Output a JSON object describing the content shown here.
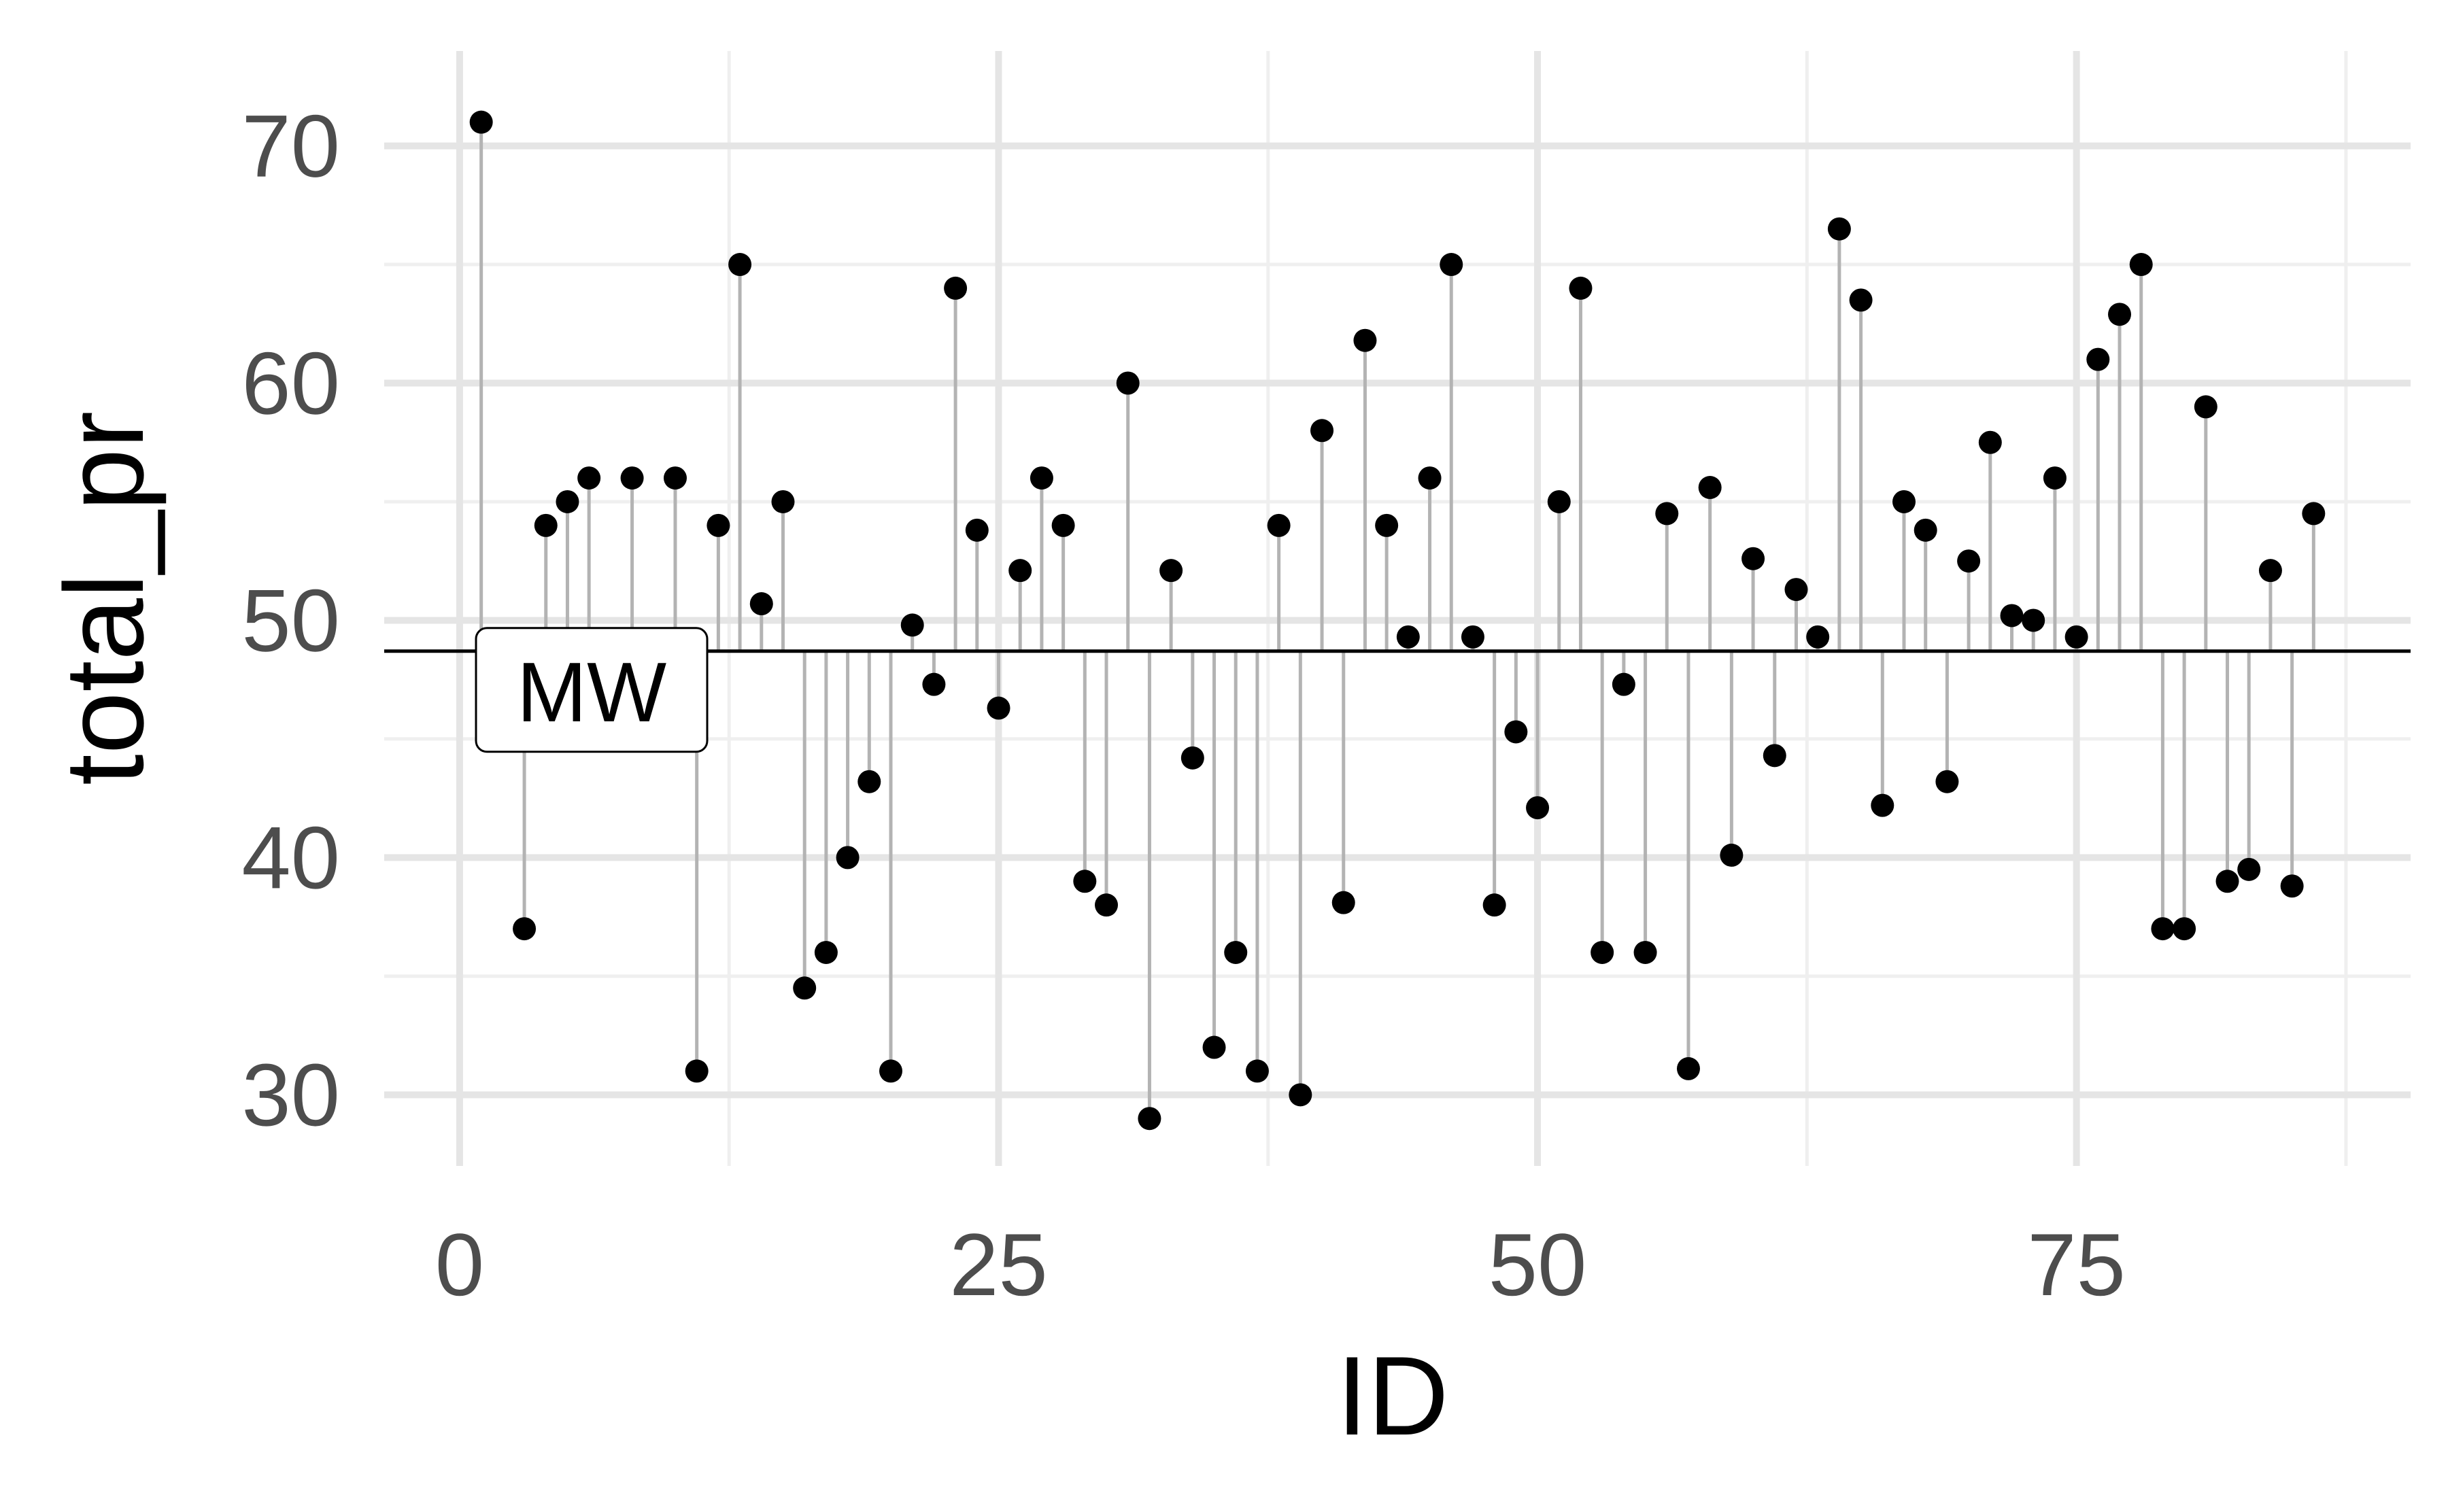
{
  "chart_data": {
    "type": "scatter",
    "xlabel": "ID",
    "ylabel": "total_pr",
    "xlim": [
      -3.5,
      90.5
    ],
    "ylim": [
      27,
      74
    ],
    "x_ticks": [
      0,
      25,
      50,
      75
    ],
    "y_ticks": [
      30,
      40,
      50,
      60,
      70
    ],
    "x_minor_ticks": [
      12.5,
      37.5,
      62.5,
      87.5
    ],
    "y_minor_ticks": [
      35,
      45,
      55,
      65
    ],
    "grid": true,
    "reference_line": {
      "y": 48.7,
      "label": "MW"
    },
    "series": [
      {
        "x": [
          1,
          3,
          4,
          5,
          6,
          8,
          10,
          11,
          12,
          13,
          14,
          15,
          16,
          17,
          18,
          19,
          20,
          21,
          22,
          23,
          24,
          25,
          26,
          27,
          28,
          29,
          30,
          31,
          32,
          33,
          34,
          35,
          36,
          37,
          38,
          39,
          40,
          41,
          42,
          43,
          44,
          45,
          46,
          47,
          48,
          49,
          50,
          51,
          52,
          53,
          54,
          55,
          56,
          57,
          58,
          59,
          60,
          61,
          62,
          63,
          64,
          65,
          66,
          67,
          68,
          69,
          70,
          71,
          72,
          73,
          74,
          75,
          76,
          77,
          78,
          79,
          80,
          81,
          82,
          83,
          84,
          85,
          86
        ],
        "y": [
          71,
          37,
          54,
          55,
          56,
          56,
          56,
          31,
          54,
          65,
          50.7,
          55,
          34.5,
          36,
          40,
          43.2,
          31,
          49.8,
          47.3,
          64,
          53.8,
          46.3,
          52.1,
          56,
          54,
          39,
          38,
          60,
          29,
          52.1,
          44.2,
          32,
          36,
          31,
          54,
          30,
          58,
          38.1,
          61.8,
          54,
          49.3,
          56,
          65,
          49.3,
          38,
          45.3,
          42.1,
          55,
          64,
          36,
          47.3,
          36,
          54.5,
          31.1,
          55.6,
          40.1,
          52.6,
          44.3,
          51.3,
          49.3,
          66.5,
          63.5,
          42.2,
          55,
          53.8,
          43.2,
          52.5,
          57.5,
          50.2,
          50,
          56,
          49.3,
          61,
          62.9,
          65,
          37,
          37,
          59,
          39,
          39.5,
          52.1,
          38.8,
          54.5
        ]
      }
    ]
  },
  "colors": {
    "point": "#000000",
    "segment": "#b3b3b3",
    "grid_major": "#e5e5e5",
    "grid_minor": "#efefef",
    "reference_line": "#000000"
  }
}
